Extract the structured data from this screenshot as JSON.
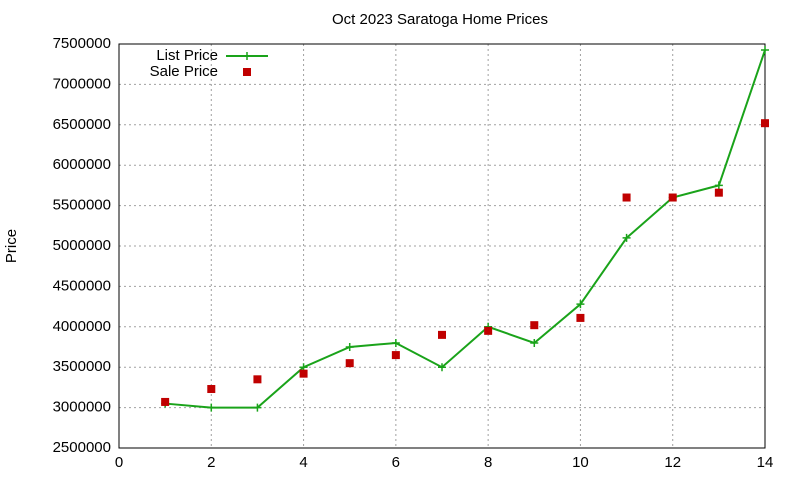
{
  "chart_data": {
    "type": "line",
    "title": "Oct 2023 Saratoga Home Prices",
    "y_label": "Price",
    "x": [
      1,
      2,
      3,
      4,
      5,
      6,
      7,
      8,
      9,
      10,
      11,
      12,
      13,
      14
    ],
    "series": [
      {
        "name": "List Price",
        "color": "#1aa31a",
        "style": "line-points",
        "values": [
          3050000,
          3000000,
          3000000,
          3500000,
          3750000,
          3800000,
          3500000,
          4000000,
          3800000,
          4280000,
          5100000,
          5600000,
          5750000,
          7425000
        ]
      },
      {
        "name": "Sale Price",
        "color": "#c00000",
        "style": "points",
        "values": [
          3070000,
          3230000,
          3350000,
          3420000,
          3550000,
          3650000,
          3900000,
          3950000,
          4020000,
          4110000,
          5600000,
          5600000,
          5660000,
          6520000
        ]
      }
    ],
    "xlim": [
      0,
      14
    ],
    "xticks": [
      0,
      2,
      4,
      6,
      8,
      10,
      12,
      14
    ],
    "ylim": [
      2500000,
      7500000
    ],
    "yticks": [
      2500000,
      3000000,
      3500000,
      4000000,
      4500000,
      5000000,
      5500000,
      6000000,
      6500000,
      7000000,
      7500000
    ],
    "grid": true,
    "legend": "top-left"
  }
}
